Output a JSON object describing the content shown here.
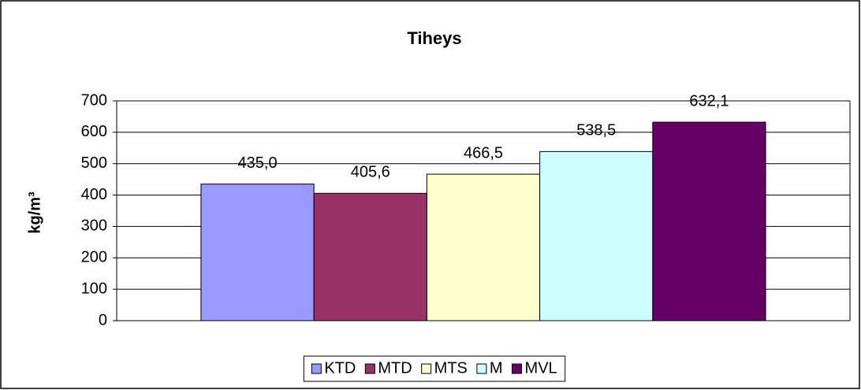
{
  "chart_data": {
    "type": "bar",
    "title": "Tiheys",
    "y_label": "kg/m³",
    "categories": [
      null
    ],
    "series": [
      {
        "name": "KTD",
        "color": "#9999ff",
        "values": [
          435.0
        ],
        "value_labels": [
          "435,0"
        ]
      },
      {
        "name": "MTD",
        "color": "#993366",
        "values": [
          405.6
        ],
        "value_labels": [
          "405,6"
        ]
      },
      {
        "name": "MTS",
        "color": "#ffffcc",
        "values": [
          466.5
        ],
        "value_labels": [
          "466,5"
        ]
      },
      {
        "name": "M",
        "color": "#ccffff",
        "values": [
          538.5
        ],
        "value_labels": [
          "538,5"
        ]
      },
      {
        "name": "MVL",
        "color": "#660066",
        "values": [
          632.1
        ],
        "value_labels": [
          "632,1"
        ]
      }
    ],
    "ylim": [
      0,
      700
    ],
    "yticks": [
      0,
      100,
      200,
      300,
      400,
      500,
      600,
      700
    ],
    "grid": true,
    "legend": "bottom"
  }
}
